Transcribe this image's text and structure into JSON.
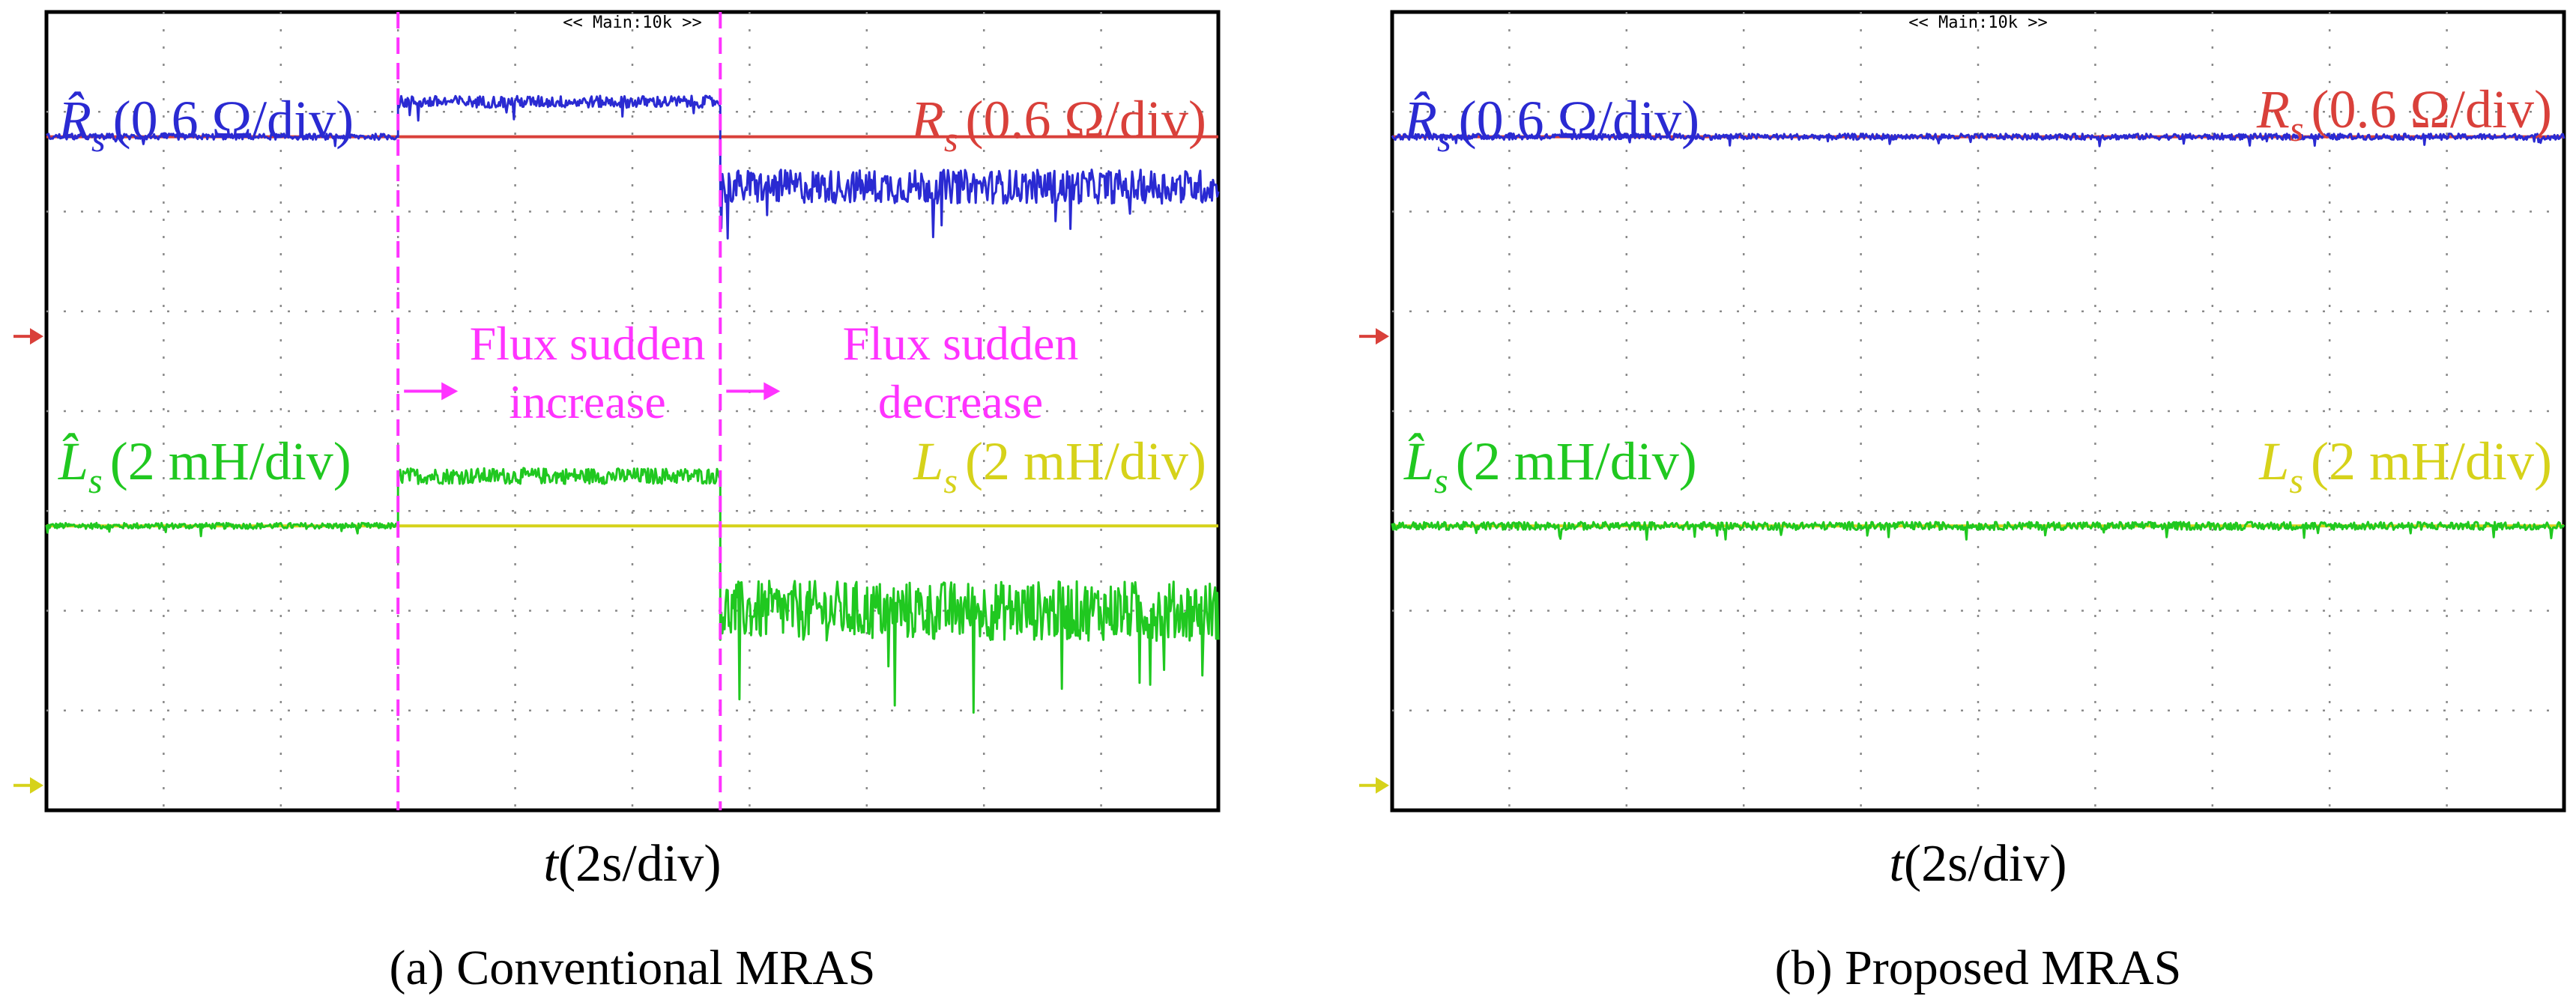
{
  "colors": {
    "est_rs": "#2a2ad2",
    "ref_rs": "#d9403a",
    "est_ls": "#20c820",
    "ref_ls": "#d6d21a",
    "marker": "#ff33ff",
    "grid": "#8a8a8a"
  },
  "chart_data": [
    {
      "type": "line",
      "id": "a",
      "panel_label": "Conventional MRAS",
      "caption": "(a) Conventional MRAS",
      "header": "<< Main:10k >>",
      "xlabel_var": "t",
      "xlabel_unit": "(2s/div)",
      "x_range": [
        0,
        20
      ],
      "y_range": [
        -4,
        4
      ],
      "grid": "on",
      "legend": {
        "rs_est": {
          "symbol": "R̂",
          "sub": "s",
          "scale": "(0.6 Ω/div)"
        },
        "rs_ref": {
          "symbol": "R",
          "sub": "s",
          "scale": "(0.6 Ω/div)"
        },
        "ls_est": {
          "symbol": "L̂",
          "sub": "s",
          "scale": "(2 mH/div)"
        },
        "ls_ref": {
          "symbol": "L",
          "sub": "s",
          "scale": "(2 mH/div)"
        }
      },
      "markers": [
        {
          "t": 6.0,
          "label_line1": "Flux sudden",
          "label_line2": "increase"
        },
        {
          "t": 11.5,
          "label_line1": "Flux sudden",
          "label_line2": "decrease"
        }
      ],
      "series": [
        {
          "name": "Rs_ref",
          "segments": [
            {
              "t0": 0,
              "t1": 20,
              "level": 2.75,
              "noise": 0
            }
          ]
        },
        {
          "name": "Rs_est",
          "segments": [
            {
              "t0": 0,
              "t1": 6.0,
              "level": 2.75,
              "noise": 0.03
            },
            {
              "t0": 6.0,
              "t1": 11.5,
              "level": 3.1,
              "noise": 0.06
            },
            {
              "t0": 11.5,
              "t1": 20,
              "level": 2.25,
              "noise": 0.17
            }
          ]
        },
        {
          "name": "Ls_ref",
          "segments": [
            {
              "t0": 0,
              "t1": 20,
              "level": -1.15,
              "noise": 0
            }
          ]
        },
        {
          "name": "Ls_est",
          "segments": [
            {
              "t0": 0,
              "t1": 6.0,
              "level": -1.15,
              "noise": 0.03
            },
            {
              "t0": 6.0,
              "t1": 11.5,
              "level": -0.65,
              "noise": 0.08
            },
            {
              "t0": 11.5,
              "t1": 20,
              "level": -2.0,
              "noise": 0.3
            }
          ]
        }
      ],
      "ground_markers": {
        "rs_level": 0.75,
        "ls_level": -3.75
      }
    },
    {
      "type": "line",
      "id": "b",
      "panel_label": "Proposed MRAS",
      "caption": "(b) Proposed MRAS",
      "header": "<< Main:10k >>",
      "xlabel_var": "t",
      "xlabel_unit": "(2s/div)",
      "x_range": [
        0,
        20
      ],
      "y_range": [
        -4,
        4
      ],
      "grid": "on",
      "legend": {
        "rs_est": {
          "symbol": "R̂",
          "sub": "s",
          "scale": "(0.6 Ω/div)"
        },
        "rs_ref": {
          "symbol": "R",
          "sub": "s",
          "scale": "(0.6 Ω/div)"
        },
        "ls_est": {
          "symbol": "L̂",
          "sub": "s",
          "scale": "(2 mH/div)"
        },
        "ls_ref": {
          "symbol": "L",
          "sub": "s",
          "scale": "(2 mH/div)"
        }
      },
      "markers": [],
      "series": [
        {
          "name": "Rs_ref",
          "segments": [
            {
              "t0": 0,
              "t1": 20,
              "level": 2.75,
              "noise": 0
            }
          ]
        },
        {
          "name": "Rs_est",
          "segments": [
            {
              "t0": 0,
              "t1": 20,
              "level": 2.75,
              "noise": 0.03
            }
          ]
        },
        {
          "name": "Ls_ref",
          "segments": [
            {
              "t0": 0,
              "t1": 20,
              "level": -1.15,
              "noise": 0
            }
          ]
        },
        {
          "name": "Ls_est",
          "segments": [
            {
              "t0": 0,
              "t1": 20,
              "level": -1.15,
              "noise": 0.04
            }
          ]
        }
      ],
      "ground_markers": {
        "rs_level": 0.75,
        "ls_level": -3.75
      }
    }
  ]
}
